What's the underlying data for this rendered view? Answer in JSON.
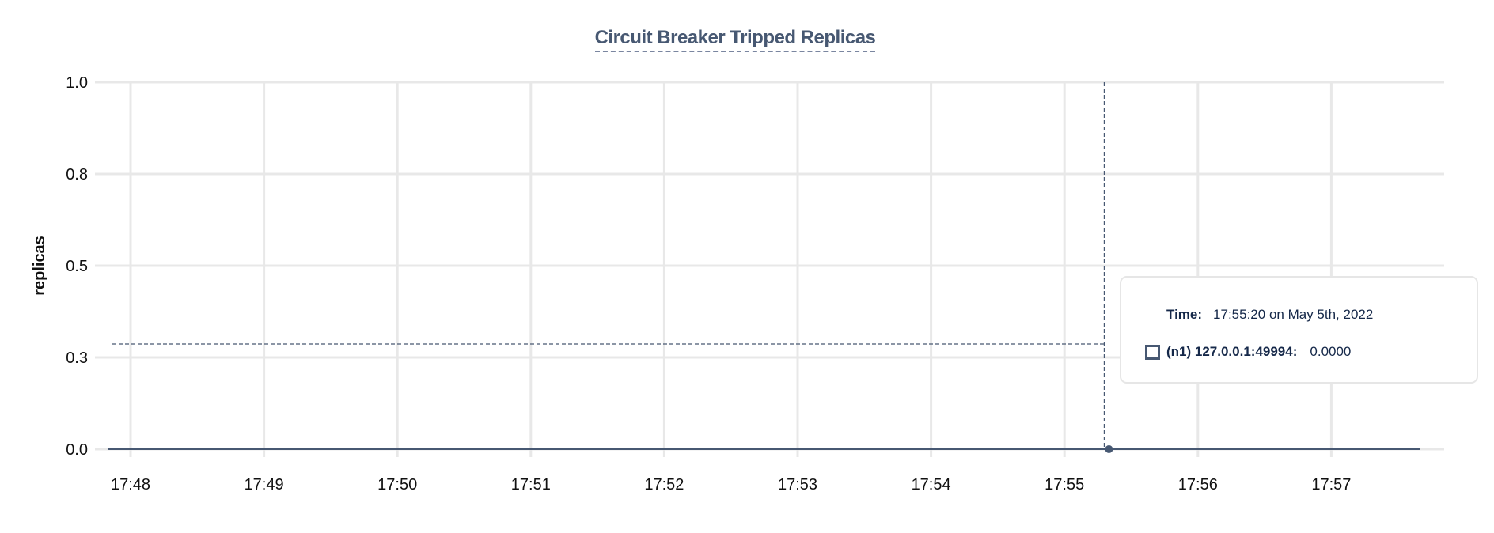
{
  "chart_data": {
    "type": "line",
    "title": "Circuit Breaker Tripped Replicas",
    "xlabel": "",
    "ylabel": "replicas",
    "ylim": [
      0,
      1
    ],
    "y_ticks": [
      "0.0",
      "0.3",
      "0.5",
      "0.8",
      "1.0"
    ],
    "x_ticks": [
      "17:48",
      "17:49",
      "17:50",
      "17:51",
      "17:52",
      "17:53",
      "17:54",
      "17:55",
      "17:56",
      "17:57"
    ],
    "grid": true,
    "series": [
      {
        "name": "(n1) 127.0.0.1:49994",
        "x": [
          "17:47:50",
          "17:55:20",
          "17:57:40"
        ],
        "y": [
          0,
          0,
          0
        ],
        "color": "#475872"
      }
    ],
    "hover": {
      "time": "17:55:20",
      "value": 0
    }
  },
  "tooltip": {
    "time_label": "Time:",
    "time_value": "17:55:20 on May 5th, 2022",
    "series_label": "(n1) 127.0.0.1:49994:",
    "series_value": "0.0000"
  }
}
